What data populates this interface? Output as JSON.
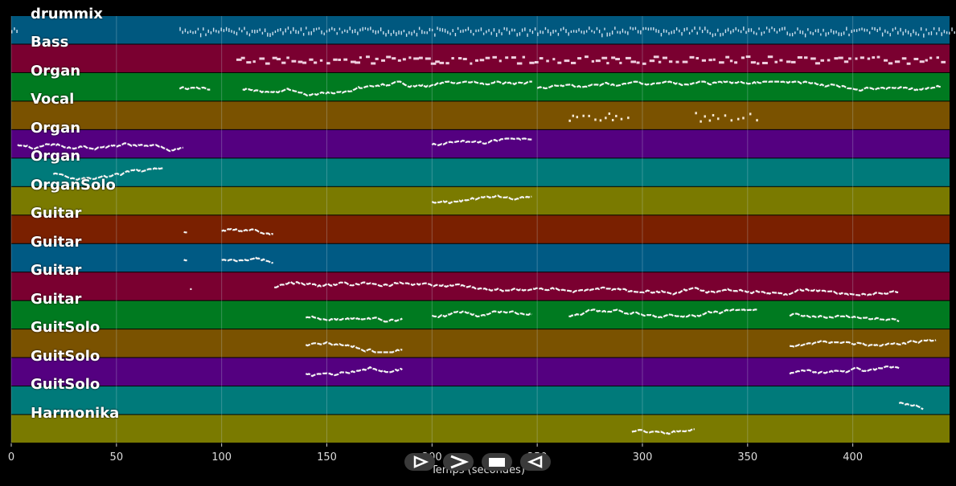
{
  "colors": {
    "background": "#000000",
    "track_colors": [
      "#005a84",
      "#7a0030",
      "#007a20",
      "#7a5200",
      "#540080",
      "#007a7a",
      "#7a7a00",
      "#7a2000"
    ],
    "note": "#ffffff",
    "grid": "#6a8a9a"
  },
  "tracks": [
    {
      "name": "drummix",
      "color": "#00587f",
      "notes": "ticks",
      "segments": [
        [
          0,
          3
        ],
        [
          80,
          470
        ]
      ]
    },
    {
      "name": "Bass",
      "color": "#7a0030",
      "notes": "dashes",
      "segments": [
        [
          107,
          442
        ]
      ]
    },
    {
      "name": "Organ",
      "color": "#007a20",
      "notes": "wave",
      "segments": [
        [
          80,
          95
        ],
        [
          110,
          248
        ],
        [
          250,
          442
        ]
      ]
    },
    {
      "name": "Vocal",
      "color": "#7a5200",
      "notes": "dots",
      "segments": [
        [
          265,
          295
        ],
        [
          325,
          355
        ]
      ]
    },
    {
      "name": "Organ",
      "color": "#540080",
      "notes": "wave",
      "segments": [
        [
          3,
          82
        ],
        [
          200,
          248
        ]
      ]
    },
    {
      "name": "Organ",
      "color": "#007a7a",
      "notes": "wave",
      "segments": [
        [
          20,
          72
        ]
      ]
    },
    {
      "name": "OrganSolo",
      "color": "#7a7a00",
      "notes": "wave",
      "segments": [
        [
          200,
          248
        ]
      ]
    },
    {
      "name": "Guitar",
      "color": "#7a2000",
      "notes": "wave",
      "segments": [
        [
          82,
          84
        ],
        [
          100,
          125
        ]
      ]
    },
    {
      "name": "Guitar",
      "color": "#005a84",
      "notes": "wave",
      "segments": [
        [
          82,
          84
        ],
        [
          100,
          125
        ]
      ]
    },
    {
      "name": "Guitar",
      "color": "#7a0030",
      "notes": "wave",
      "segments": [
        [
          85,
          86
        ],
        [
          125,
          422
        ]
      ]
    },
    {
      "name": "Guitar",
      "color": "#007a20",
      "notes": "wave",
      "segments": [
        [
          140,
          186
        ],
        [
          200,
          248
        ],
        [
          265,
          355
        ],
        [
          370,
          422
        ]
      ]
    },
    {
      "name": "GuitSolo",
      "color": "#7a5200",
      "notes": "wave",
      "segments": [
        [
          140,
          186
        ],
        [
          370,
          440
        ]
      ]
    },
    {
      "name": "GuitSolo",
      "color": "#540080",
      "notes": "wave",
      "segments": [
        [
          140,
          186
        ],
        [
          370,
          422
        ]
      ]
    },
    {
      "name": "GuitSolo",
      "color": "#007a7a",
      "notes": "wave",
      "segments": [
        [
          422,
          434
        ]
      ]
    },
    {
      "name": "Harmonika",
      "color": "#7a7a00",
      "notes": "wave",
      "segments": [
        [
          295,
          325
        ]
      ]
    }
  ],
  "axis": {
    "title": "Temps (secondes)",
    "ticks": [
      "0",
      "50",
      "100",
      "150",
      "200",
      "250",
      "300",
      "350",
      "400"
    ],
    "tick_values": [
      0,
      50,
      100,
      150,
      200,
      250,
      300,
      350,
      400
    ],
    "range": [
      0,
      446
    ]
  },
  "controls": [
    {
      "name": "play-button",
      "icon": "play-outline-icon"
    },
    {
      "name": "next-button",
      "icon": "chevron-right-icon"
    },
    {
      "name": "stop-button",
      "icon": "stop-icon"
    },
    {
      "name": "rewind-button",
      "icon": "play-reverse-outline-icon"
    }
  ]
}
